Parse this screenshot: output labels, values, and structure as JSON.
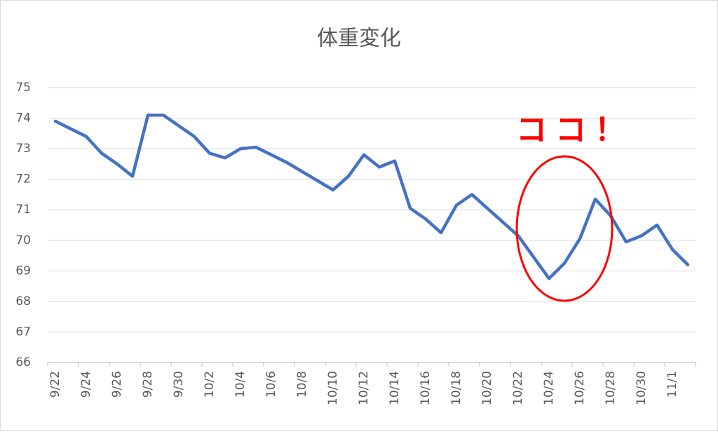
{
  "chart_data": {
    "type": "line",
    "title": "体重変化",
    "annotation": "ココ！",
    "categories": [
      "9/22",
      null,
      "9/24",
      null,
      "9/26",
      null,
      "9/28",
      null,
      "9/30",
      null,
      "10/2",
      null,
      "10/4",
      null,
      "10/6",
      null,
      "10/8",
      null,
      "10/10",
      null,
      "10/12",
      null,
      "10/14",
      null,
      "10/16",
      null,
      "10/18",
      null,
      "10/20",
      null,
      "10/22",
      null,
      "10/24",
      null,
      "10/26",
      null,
      "10/28",
      null,
      "10/30",
      null,
      "11/1",
      null
    ],
    "series": [
      {
        "name": "体重",
        "color": "#4472c4",
        "values": [
          73.9,
          73.65,
          73.4,
          72.85,
          72.5,
          72.1,
          74.1,
          74.1,
          73.75,
          73.4,
          72.85,
          72.7,
          73.0,
          73.05,
          72.8,
          72.55,
          72.25,
          71.95,
          71.65,
          72.1,
          72.8,
          72.4,
          72.6,
          71.05,
          70.7,
          70.25,
          71.15,
          71.5,
          71.05,
          70.6,
          70.15,
          69.45,
          68.75,
          69.25,
          70.05,
          71.35,
          70.8,
          69.95,
          70.15,
          70.5,
          69.7,
          69.2
        ]
      }
    ],
    "ylim": [
      66,
      75
    ],
    "yticks": [
      66,
      67,
      68,
      69,
      70,
      71,
      72,
      73,
      74,
      75
    ],
    "grid": true
  }
}
